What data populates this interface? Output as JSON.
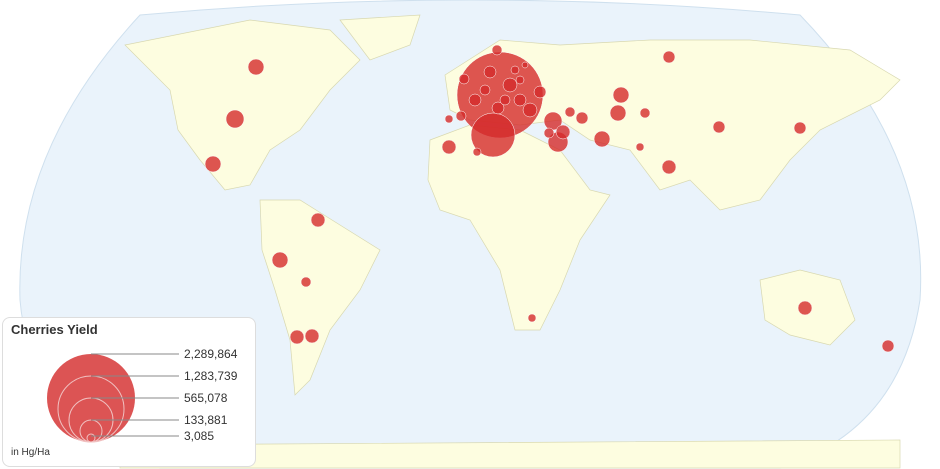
{
  "legend": {
    "title": "Cherries Yield",
    "unit": "in Hg/Ha",
    "values": [
      "2,289,864",
      "1,283,739",
      "565,078",
      "133,881",
      "3,085"
    ]
  },
  "colors": {
    "ocean": "#eaf3fb",
    "land": "#fdfde0",
    "bubble": "#d42a2a",
    "legend_bubble": "#dc5454"
  }
}
